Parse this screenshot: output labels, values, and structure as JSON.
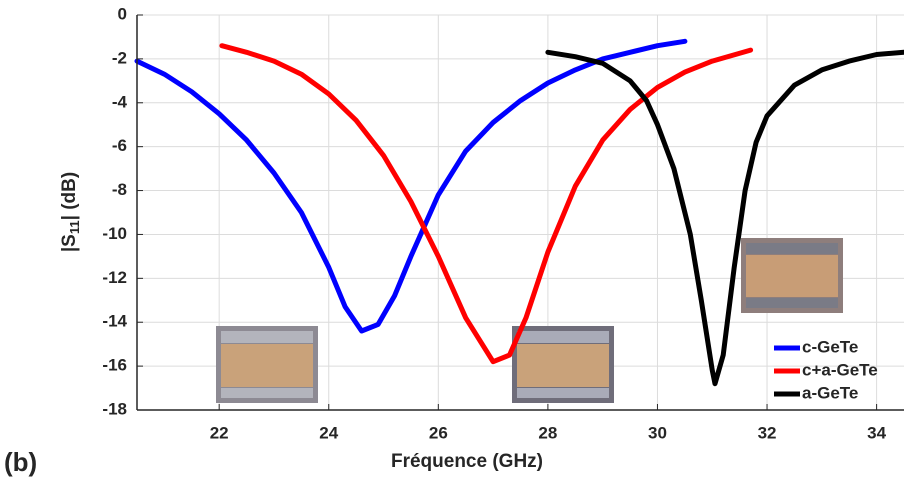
{
  "chart_data": {
    "type": "line",
    "panel_label": "(b)",
    "xlabel": "Fréquence (GHz)",
    "ylabel": {
      "prefix": "|S",
      "sub": "11",
      "suffix": "| (dB)"
    },
    "xlim": [
      20.5,
      34.5
    ],
    "ylim": [
      -18,
      0
    ],
    "xticks": [
      22,
      24,
      26,
      28,
      30,
      32,
      34
    ],
    "yticks": [
      0,
      -2,
      -4,
      -6,
      -8,
      -10,
      -12,
      -14,
      -16,
      -18
    ],
    "grid": true,
    "legend": "lower right",
    "series": [
      {
        "name": "c-GeTe",
        "color": "#0000ff",
        "x": [
          20.5,
          21,
          21.5,
          22,
          22.5,
          23,
          23.5,
          24,
          24.3,
          24.6,
          24.9,
          25.2,
          25.5,
          26,
          26.5,
          27,
          27.5,
          28,
          28.5,
          29,
          29.5,
          30,
          30.5
        ],
        "values": [
          -2.1,
          -2.7,
          -3.5,
          -4.5,
          -5.7,
          -7.2,
          -9.0,
          -11.5,
          -13.3,
          -14.4,
          -14.1,
          -12.8,
          -11.0,
          -8.2,
          -6.2,
          -4.9,
          -3.9,
          -3.1,
          -2.5,
          -2.0,
          -1.7,
          -1.4,
          -1.2
        ]
      },
      {
        "name": "c+a-GeTe",
        "color": "#ff0000",
        "x": [
          22.05,
          22.5,
          23,
          23.5,
          24,
          24.5,
          25,
          25.5,
          26,
          26.5,
          27,
          27.3,
          27.6,
          28,
          28.5,
          29,
          29.5,
          30,
          30.5,
          31,
          31.7
        ],
        "values": [
          -1.4,
          -1.7,
          -2.1,
          -2.7,
          -3.6,
          -4.8,
          -6.4,
          -8.5,
          -11.0,
          -13.8,
          -15.8,
          -15.5,
          -13.8,
          -10.8,
          -7.8,
          -5.7,
          -4.3,
          -3.3,
          -2.6,
          -2.1,
          -1.6
        ]
      },
      {
        "name": "a-GeTe",
        "color": "#000000",
        "x": [
          28,
          28.5,
          29,
          29.5,
          29.8,
          30,
          30.3,
          30.6,
          30.8,
          31.0,
          31.05,
          31.2,
          31.4,
          31.6,
          31.8,
          32,
          32.5,
          33,
          33.5,
          34,
          34.5
        ],
        "values": [
          -1.7,
          -1.9,
          -2.2,
          -3.0,
          -3.9,
          -5.0,
          -7.0,
          -10.0,
          -13.0,
          -16.2,
          -16.8,
          -15.5,
          -11.5,
          -8.0,
          -5.8,
          -4.6,
          -3.2,
          -2.5,
          -2.1,
          -1.8,
          -1.7
        ]
      }
    ]
  }
}
